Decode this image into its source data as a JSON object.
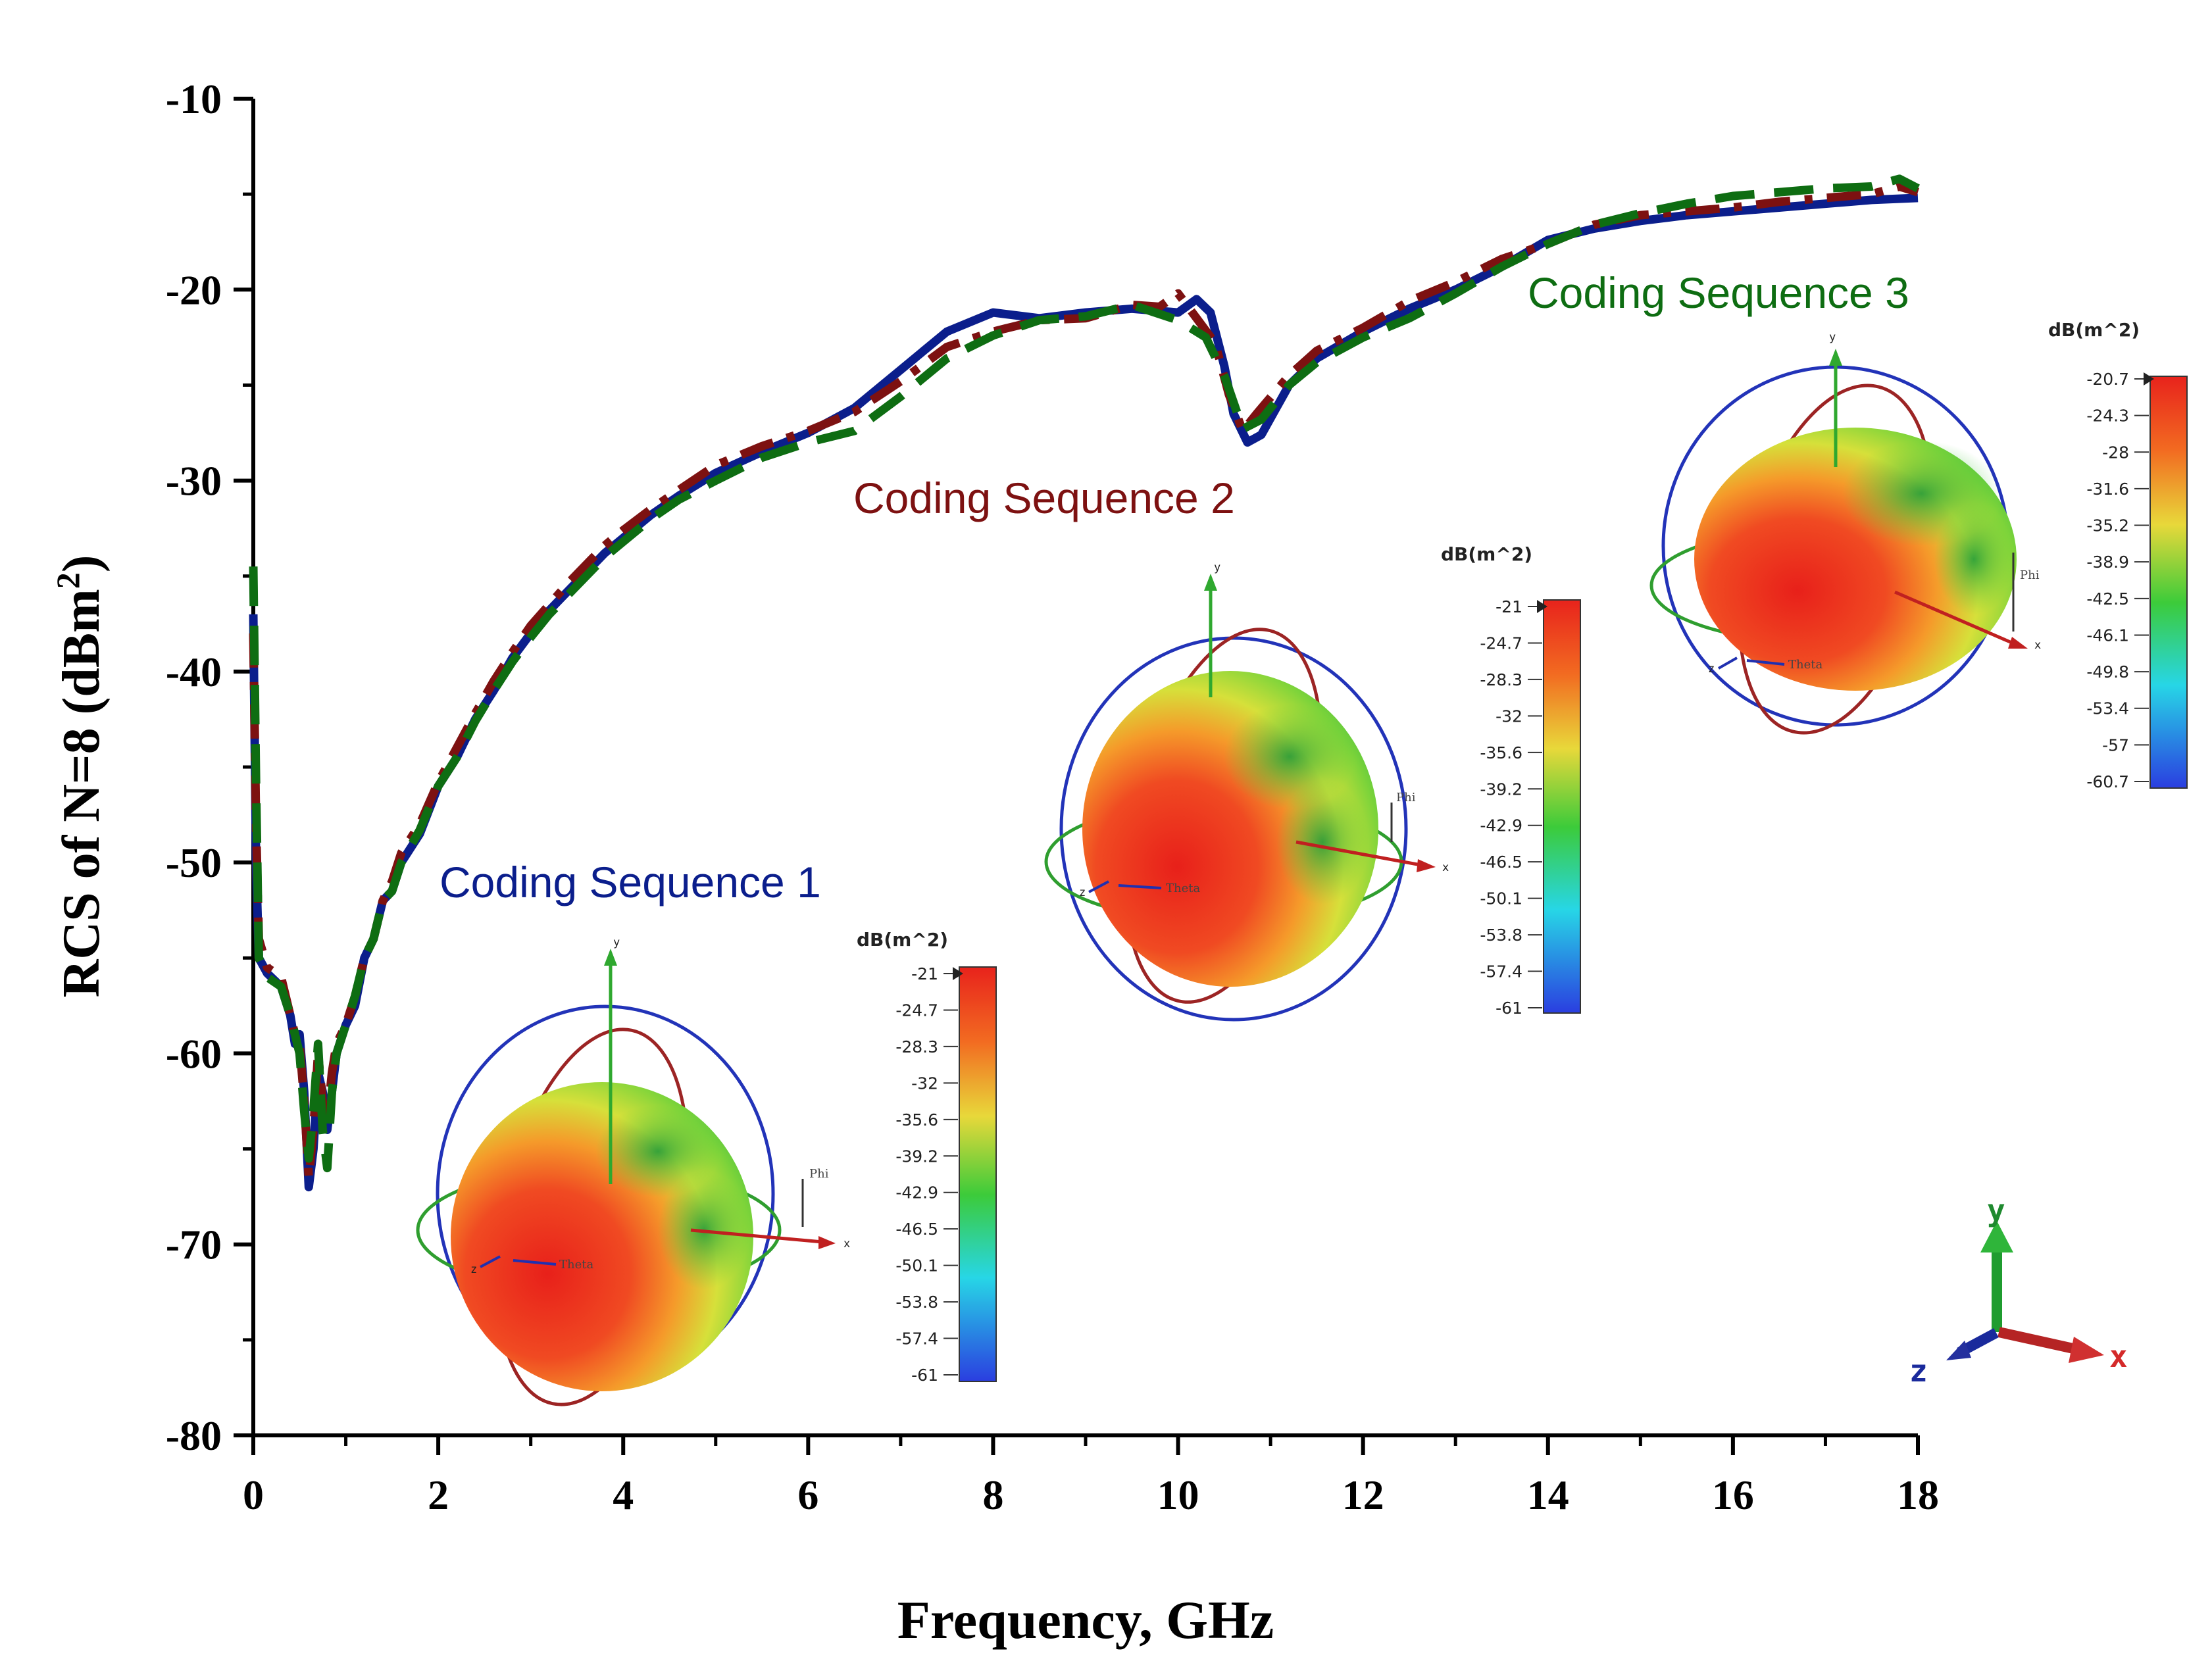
{
  "chart_data": {
    "type": "line",
    "xlabel": "Frequency, GHz",
    "ylabel_main": "RCS of N=8 (dBm",
    "ylabel_sup": "2",
    "ylabel_end": ")",
    "xlim": [
      0,
      18
    ],
    "ylim": [
      -80,
      -10
    ],
    "x_ticks": [
      0,
      2,
      4,
      6,
      8,
      10,
      12,
      14,
      16,
      18
    ],
    "y_ticks": [
      -10,
      -20,
      -30,
      -40,
      -50,
      -60,
      -70,
      -80
    ],
    "x_tick_labels": [
      "0",
      "2",
      "4",
      "6",
      "8",
      "10",
      "12",
      "14",
      "16",
      "18"
    ],
    "y_tick_labels": [
      "-10",
      "-20",
      "-30",
      "-40",
      "-50",
      "-60",
      "-70",
      "-80"
    ],
    "grid": false,
    "series": [
      {
        "name": "Coding Sequence 1",
        "color": "#0b1e8c",
        "dash": "solid",
        "points": [
          [
            0,
            -37
          ],
          [
            0.03,
            -50
          ],
          [
            0.06,
            -55
          ],
          [
            0.15,
            -55.8
          ],
          [
            0.3,
            -56.5
          ],
          [
            0.4,
            -58
          ],
          [
            0.45,
            -59.5
          ],
          [
            0.5,
            -59
          ],
          [
            0.55,
            -62
          ],
          [
            0.6,
            -67
          ],
          [
            0.65,
            -65
          ],
          [
            0.7,
            -61
          ],
          [
            0.75,
            -62
          ],
          [
            0.8,
            -64
          ],
          [
            0.85,
            -62
          ],
          [
            0.9,
            -60
          ],
          [
            1.0,
            -58.5
          ],
          [
            1.1,
            -57.5
          ],
          [
            1.2,
            -55
          ],
          [
            1.3,
            -54
          ],
          [
            1.4,
            -52
          ],
          [
            1.5,
            -51.5
          ],
          [
            1.6,
            -50
          ],
          [
            1.8,
            -48.5
          ],
          [
            2.0,
            -46
          ],
          [
            2.2,
            -44.5
          ],
          [
            2.4,
            -42.5
          ],
          [
            2.6,
            -41
          ],
          [
            2.8,
            -39.3
          ],
          [
            3.0,
            -38
          ],
          [
            3.2,
            -36.8
          ],
          [
            3.4,
            -35.8
          ],
          [
            3.6,
            -34.8
          ],
          [
            3.8,
            -33.8
          ],
          [
            4.0,
            -33
          ],
          [
            4.3,
            -31.8
          ],
          [
            4.6,
            -30.8
          ],
          [
            5.0,
            -29.6
          ],
          [
            5.5,
            -28.5
          ],
          [
            6.0,
            -27.5
          ],
          [
            6.5,
            -26.2
          ],
          [
            7.0,
            -24.2
          ],
          [
            7.5,
            -22.2
          ],
          [
            8.0,
            -21.2
          ],
          [
            8.5,
            -21.5
          ],
          [
            9.0,
            -21.2
          ],
          [
            9.5,
            -21
          ],
          [
            10.0,
            -21.2
          ],
          [
            10.2,
            -20.5
          ],
          [
            10.35,
            -21.2
          ],
          [
            10.5,
            -24
          ],
          [
            10.6,
            -26.5
          ],
          [
            10.75,
            -28
          ],
          [
            10.9,
            -27.6
          ],
          [
            11.2,
            -25
          ],
          [
            11.5,
            -23.6
          ],
          [
            12.0,
            -22.2
          ],
          [
            12.5,
            -21
          ],
          [
            13.0,
            -20
          ],
          [
            13.5,
            -18.8
          ],
          [
            14.0,
            -17.4
          ],
          [
            14.5,
            -16.8
          ],
          [
            15.0,
            -16.4
          ],
          [
            15.5,
            -16.1
          ],
          [
            16.0,
            -15.9
          ],
          [
            16.5,
            -15.7
          ],
          [
            17.0,
            -15.5
          ],
          [
            17.5,
            -15.3
          ],
          [
            18.0,
            -15.2
          ]
        ]
      },
      {
        "name": "Coding Sequence 2",
        "color": "#7d1111",
        "dash": "dashdot",
        "points": [
          [
            0,
            -38
          ],
          [
            0.03,
            -48
          ],
          [
            0.06,
            -54
          ],
          [
            0.15,
            -55.5
          ],
          [
            0.3,
            -56
          ],
          [
            0.4,
            -58
          ],
          [
            0.45,
            -59
          ],
          [
            0.5,
            -59.5
          ],
          [
            0.55,
            -62.5
          ],
          [
            0.6,
            -66.5
          ],
          [
            0.65,
            -64
          ],
          [
            0.7,
            -60
          ],
          [
            0.75,
            -62.5
          ],
          [
            0.8,
            -63.5
          ],
          [
            0.85,
            -61
          ],
          [
            0.9,
            -59.5
          ],
          [
            1.0,
            -58.5
          ],
          [
            1.1,
            -57
          ],
          [
            1.2,
            -55
          ],
          [
            1.3,
            -54
          ],
          [
            1.4,
            -52
          ],
          [
            1.5,
            -51
          ],
          [
            1.6,
            -49.5
          ],
          [
            1.8,
            -48
          ],
          [
            2.0,
            -45.8
          ],
          [
            2.2,
            -44
          ],
          [
            2.4,
            -42.2
          ],
          [
            2.6,
            -40.5
          ],
          [
            2.8,
            -39
          ],
          [
            3.0,
            -37.6
          ],
          [
            3.2,
            -36.5
          ],
          [
            3.4,
            -35.4
          ],
          [
            3.6,
            -34.4
          ],
          [
            3.8,
            -33.4
          ],
          [
            4.0,
            -32.6
          ],
          [
            4.3,
            -31.5
          ],
          [
            4.6,
            -30.5
          ],
          [
            5.0,
            -29.2
          ],
          [
            5.5,
            -28.2
          ],
          [
            6.0,
            -27.4
          ],
          [
            6.5,
            -26.4
          ],
          [
            7.0,
            -24.8
          ],
          [
            7.5,
            -23
          ],
          [
            8.0,
            -22.2
          ],
          [
            8.5,
            -21.6
          ],
          [
            9.0,
            -21.5
          ],
          [
            9.5,
            -20.8
          ],
          [
            9.8,
            -20.9
          ],
          [
            10.0,
            -20.2
          ],
          [
            10.2,
            -21.5
          ],
          [
            10.4,
            -22.8
          ],
          [
            10.55,
            -25.5
          ],
          [
            10.7,
            -27.4
          ],
          [
            10.85,
            -26.5
          ],
          [
            11.2,
            -24.5
          ],
          [
            11.5,
            -23.2
          ],
          [
            12.0,
            -22
          ],
          [
            12.5,
            -20.6
          ],
          [
            13.0,
            -19.6
          ],
          [
            13.5,
            -18.4
          ],
          [
            14.0,
            -17.6
          ],
          [
            14.5,
            -16.6
          ],
          [
            15.0,
            -16.1
          ],
          [
            15.5,
            -15.9
          ],
          [
            16.0,
            -15.7
          ],
          [
            16.5,
            -15.4
          ],
          [
            17.0,
            -15.2
          ],
          [
            17.5,
            -15
          ],
          [
            17.8,
            -14.6
          ],
          [
            18.0,
            -14.9
          ]
        ]
      },
      {
        "name": "Coding Sequence 3",
        "color": "#0e6d12",
        "dash": "dashed",
        "points": [
          [
            0,
            -34.5
          ],
          [
            0.03,
            -46
          ],
          [
            0.06,
            -55
          ],
          [
            0.15,
            -56
          ],
          [
            0.3,
            -56.5
          ],
          [
            0.4,
            -58
          ],
          [
            0.45,
            -59
          ],
          [
            0.5,
            -60
          ],
          [
            0.55,
            -63
          ],
          [
            0.6,
            -65.5
          ],
          [
            0.65,
            -63
          ],
          [
            0.7,
            -59.5
          ],
          [
            0.75,
            -64
          ],
          [
            0.8,
            -66
          ],
          [
            0.85,
            -62
          ],
          [
            0.9,
            -60
          ],
          [
            1.0,
            -58.5
          ],
          [
            1.1,
            -57
          ],
          [
            1.2,
            -55
          ],
          [
            1.3,
            -54
          ],
          [
            1.4,
            -52
          ],
          [
            1.5,
            -51.5
          ],
          [
            1.6,
            -50
          ],
          [
            1.8,
            -48.3
          ],
          [
            2.0,
            -46
          ],
          [
            2.2,
            -44.5
          ],
          [
            2.4,
            -42.6
          ],
          [
            2.6,
            -41
          ],
          [
            2.8,
            -39.5
          ],
          [
            3.0,
            -38.2
          ],
          [
            3.2,
            -37
          ],
          [
            3.4,
            -36
          ],
          [
            3.6,
            -35
          ],
          [
            3.8,
            -34
          ],
          [
            4.0,
            -33.2
          ],
          [
            4.3,
            -32
          ],
          [
            4.6,
            -31
          ],
          [
            5.0,
            -30
          ],
          [
            5.5,
            -28.8
          ],
          [
            6.0,
            -28
          ],
          [
            6.5,
            -27.4
          ],
          [
            7.0,
            -25.6
          ],
          [
            7.5,
            -23.6
          ],
          [
            8.0,
            -22.4
          ],
          [
            8.5,
            -21.6
          ],
          [
            9.0,
            -21.4
          ],
          [
            9.5,
            -20.8
          ],
          [
            10.0,
            -21.6
          ],
          [
            10.3,
            -22.5
          ],
          [
            10.5,
            -24.5
          ],
          [
            10.7,
            -27.3
          ],
          [
            10.9,
            -26.8
          ],
          [
            11.2,
            -25
          ],
          [
            11.5,
            -23.8
          ],
          [
            12.0,
            -22.5
          ],
          [
            12.5,
            -21.5
          ],
          [
            13.0,
            -20.2
          ],
          [
            13.5,
            -18.8
          ],
          [
            14.0,
            -17.6
          ],
          [
            14.5,
            -16.6
          ],
          [
            15.0,
            -16
          ],
          [
            15.5,
            -15.5
          ],
          [
            16.0,
            -15.1
          ],
          [
            16.5,
            -14.9
          ],
          [
            17.0,
            -14.7
          ],
          [
            17.5,
            -14.6
          ],
          [
            17.8,
            -14.2
          ],
          [
            18.0,
            -14.7
          ]
        ]
      }
    ],
    "annotations": [
      {
        "text": "Coding Sequence 1",
        "color": "#0b1e8c"
      },
      {
        "text": "Coding Sequence 2",
        "color": "#7d1111"
      },
      {
        "text": "Coding Sequence 3",
        "color": "#0e6d12"
      }
    ]
  },
  "insets": [
    {
      "name": "inset-sequence-1",
      "colorbar_title": "dB(m^2)",
      "colorbar_ticks": [
        "-21",
        "-24.7",
        "-28.3",
        "-32",
        "-35.6",
        "-39.2",
        "-42.9",
        "-46.5",
        "-50.1",
        "-53.8",
        "-57.4",
        "-61"
      ],
      "axis_y": "y",
      "axis_x": "x",
      "axis_z": "z",
      "phi_label": "Phi",
      "theta_label": "Theta"
    },
    {
      "name": "inset-sequence-2",
      "colorbar_title": "dB(m^2)",
      "colorbar_ticks": [
        "-21",
        "-24.7",
        "-28.3",
        "-32",
        "-35.6",
        "-39.2",
        "-42.9",
        "-46.5",
        "-50.1",
        "-53.8",
        "-57.4",
        "-61"
      ],
      "axis_y": "y",
      "axis_x": "x",
      "axis_z": "z",
      "phi_label": "Phi",
      "theta_label": "Theta"
    },
    {
      "name": "inset-sequence-3",
      "colorbar_title": "dB(m^2)",
      "colorbar_ticks": [
        "-20.7",
        "-24.3",
        "-28",
        "-31.6",
        "-35.2",
        "-38.9",
        "-42.5",
        "-46.1",
        "-49.8",
        "-53.4",
        "-57",
        "-60.7"
      ],
      "axis_y": "y",
      "axis_x": "x",
      "axis_z": "z",
      "phi_label": "Phi",
      "theta_label": "Theta"
    }
  ],
  "triad": {
    "x": "x",
    "y": "y",
    "z": "z"
  },
  "colors": {
    "red": "#e8231c",
    "orange": "#f26b21",
    "yellow": "#d9e23a",
    "green": "#39c44a",
    "cyan": "#27d6e6",
    "blue": "#2a3ee0"
  }
}
